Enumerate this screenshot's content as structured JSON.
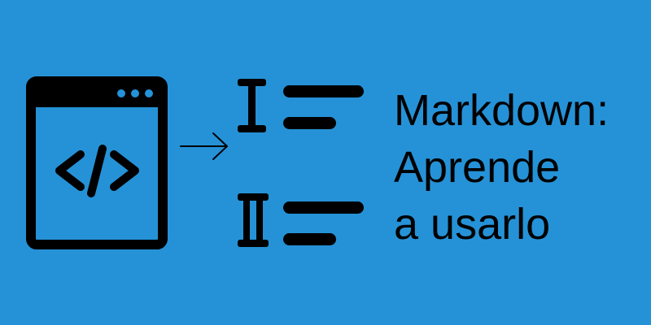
{
  "colors": {
    "background": "#2592d7",
    "ink": "#000000"
  },
  "icons": {
    "browser": "browser-window-code-icon",
    "code": "code-brackets-icon",
    "arrow": "right-arrow-icon",
    "heading_one": "heading-one-icon",
    "heading_two": "heading-two-icon"
  },
  "title": {
    "line1": "Markdown:",
    "line2": "Aprende",
    "line3": "a usarlo"
  }
}
